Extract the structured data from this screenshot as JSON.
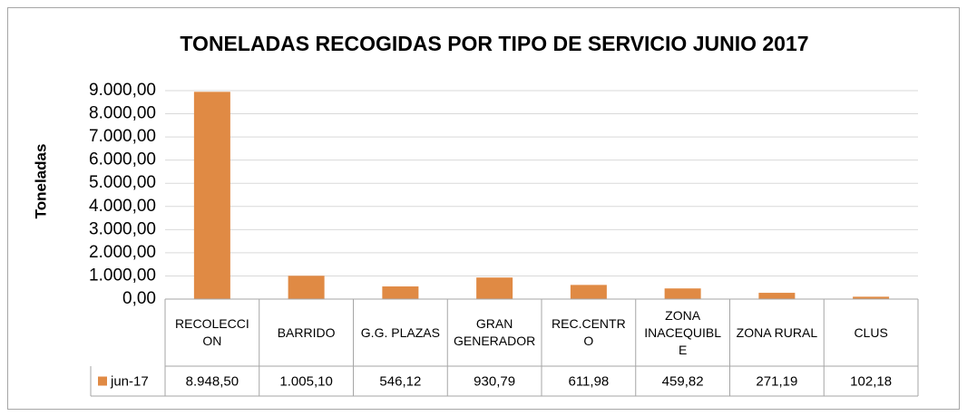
{
  "chart_data": {
    "type": "bar",
    "title": "TONELADAS RECOGIDAS POR TIPO DE SERVICIO  JUNIO 2017",
    "y_label": "Toneladas",
    "categories": [
      "RECOLECCION",
      "BARRIDO",
      "G.G. PLAZAS",
      "GRAN GENERADOR",
      "REC.CENTRO",
      "ZONA INACEQUIBLE",
      "ZONA RURAL",
      "CLUS"
    ],
    "series": [
      {
        "name": "jun-17",
        "color": "#E08A44",
        "values": [
          8948.5,
          1005.1,
          546.12,
          930.79,
          611.98,
          459.82,
          271.19,
          102.18
        ],
        "value_labels": [
          "8.948,50",
          "1.005,10",
          "546,12",
          "930,79",
          "611,98",
          "459,82",
          "271,19",
          "102,18"
        ]
      }
    ],
    "ylim": [
      0,
      9000
    ],
    "yticks": [
      {
        "value": 0,
        "label": "0,00"
      },
      {
        "value": 1000,
        "label": "1.000,00"
      },
      {
        "value": 2000,
        "label": "2.000,00"
      },
      {
        "value": 3000,
        "label": "3.000,00"
      },
      {
        "value": 4000,
        "label": "4.000,00"
      },
      {
        "value": 5000,
        "label": "5.000,00"
      },
      {
        "value": 6000,
        "label": "6.000,00"
      },
      {
        "value": 7000,
        "label": "7.000,00"
      },
      {
        "value": 8000,
        "label": "8.000,00"
      },
      {
        "value": 9000,
        "label": "9.000,00"
      }
    ],
    "grid": true,
    "legend": "data-table"
  }
}
